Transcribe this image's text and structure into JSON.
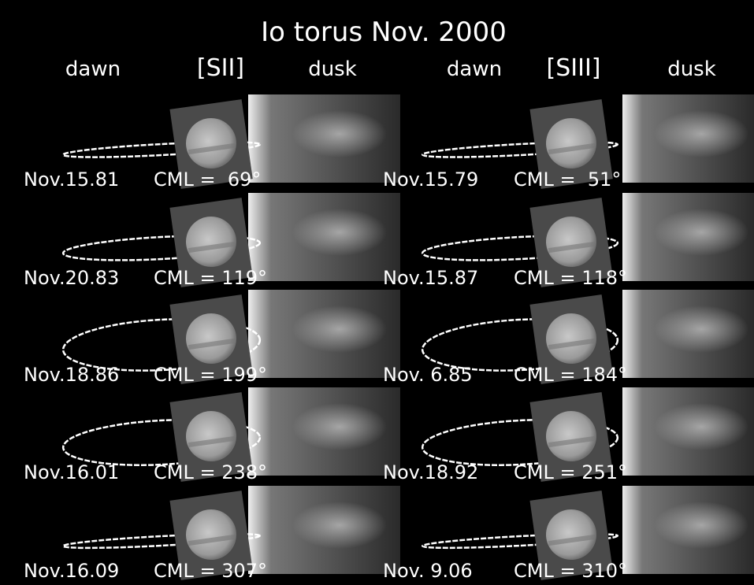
{
  "title": "Io torus Nov. 2000",
  "panels": [
    {
      "headers": [
        "dawn",
        "[SII]",
        "dusk"
      ],
      "rows": [
        {
          "date": "Nov.15.81",
          "cml": "CML =  69°"
        },
        {
          "date": "Nov.20.83",
          "cml": "CML = 119°"
        },
        {
          "date": "Nov.18.86",
          "cml": "CML = 199°"
        },
        {
          "date": "Nov.16.01",
          "cml": "CML = 238°"
        },
        {
          "date": "Nov.16.09",
          "cml": "CML = 307°"
        }
      ]
    },
    {
      "headers": [
        "dawn",
        "[SIII]",
        "dusk"
      ],
      "rows": [
        {
          "date": "Nov.15.79",
          "cml": "CML =  51°"
        },
        {
          "date": "Nov.15.87",
          "cml": "CML = 118°"
        },
        {
          "date": "Nov. 6.85",
          "cml": "CML = 184°"
        },
        {
          "date": "Nov.18.92",
          "cml": "CML = 251°"
        },
        {
          "date": "Nov. 9.06",
          "cml": "CML = 310°"
        }
      ]
    }
  ]
}
